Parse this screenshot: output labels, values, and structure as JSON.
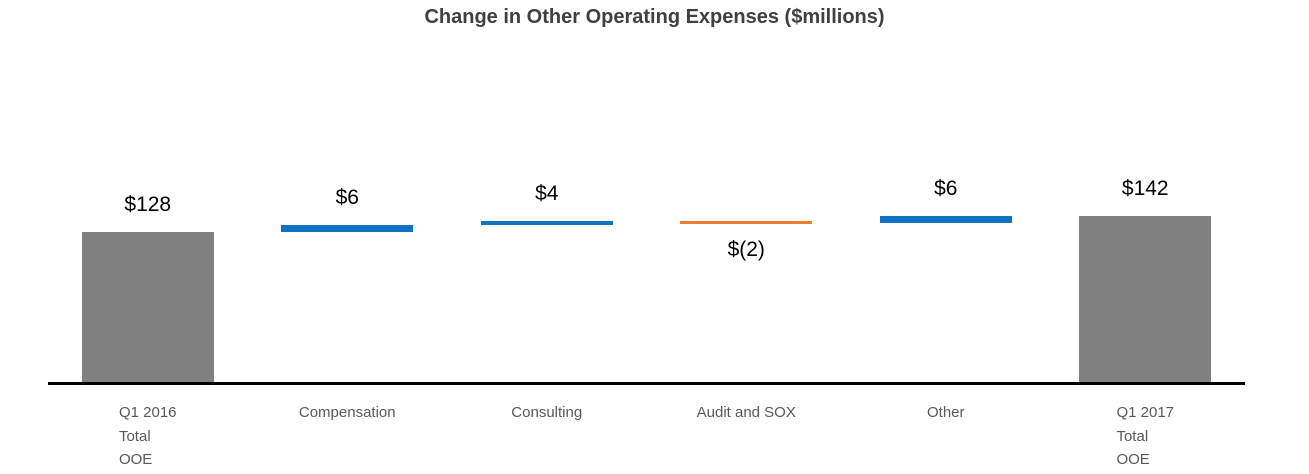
{
  "chart_data": {
    "type": "bar",
    "subtype": "waterfall",
    "title": "Change in Other Operating Expenses ($millions)",
    "categories": [
      "Q1 2016 Total OOE",
      "Compensation",
      "Consulting",
      "Audit and SOX",
      "Other",
      "Q1 2017 Total OOE"
    ],
    "category_lines": [
      [
        "Q1 2016",
        "Total",
        "OOE"
      ],
      [
        "Compensation"
      ],
      [
        "Consulting"
      ],
      [
        "Audit and SOX"
      ],
      [
        "Other"
      ],
      [
        "Q1 2017",
        "Total",
        "OOE"
      ]
    ],
    "values": [
      128,
      6,
      4,
      -2,
      6,
      142
    ],
    "data_labels": [
      "$128",
      "$6",
      "$4",
      "$(2)",
      "$6",
      "$142"
    ],
    "bar_types": [
      "total",
      "increase",
      "increase",
      "decrease",
      "increase",
      "total"
    ],
    "ylim": [
      0,
      142
    ],
    "grid": false,
    "legend": false,
    "xlabel": "",
    "ylabel": "",
    "colors": {
      "total": "#808080",
      "increase": "#1272C2",
      "decrease": "#ED7D31",
      "axis": "#000000",
      "title_text": "#404040",
      "data_label_text": "#000000",
      "category_label_text": "#595959",
      "background": "#FFFFFF"
    }
  }
}
